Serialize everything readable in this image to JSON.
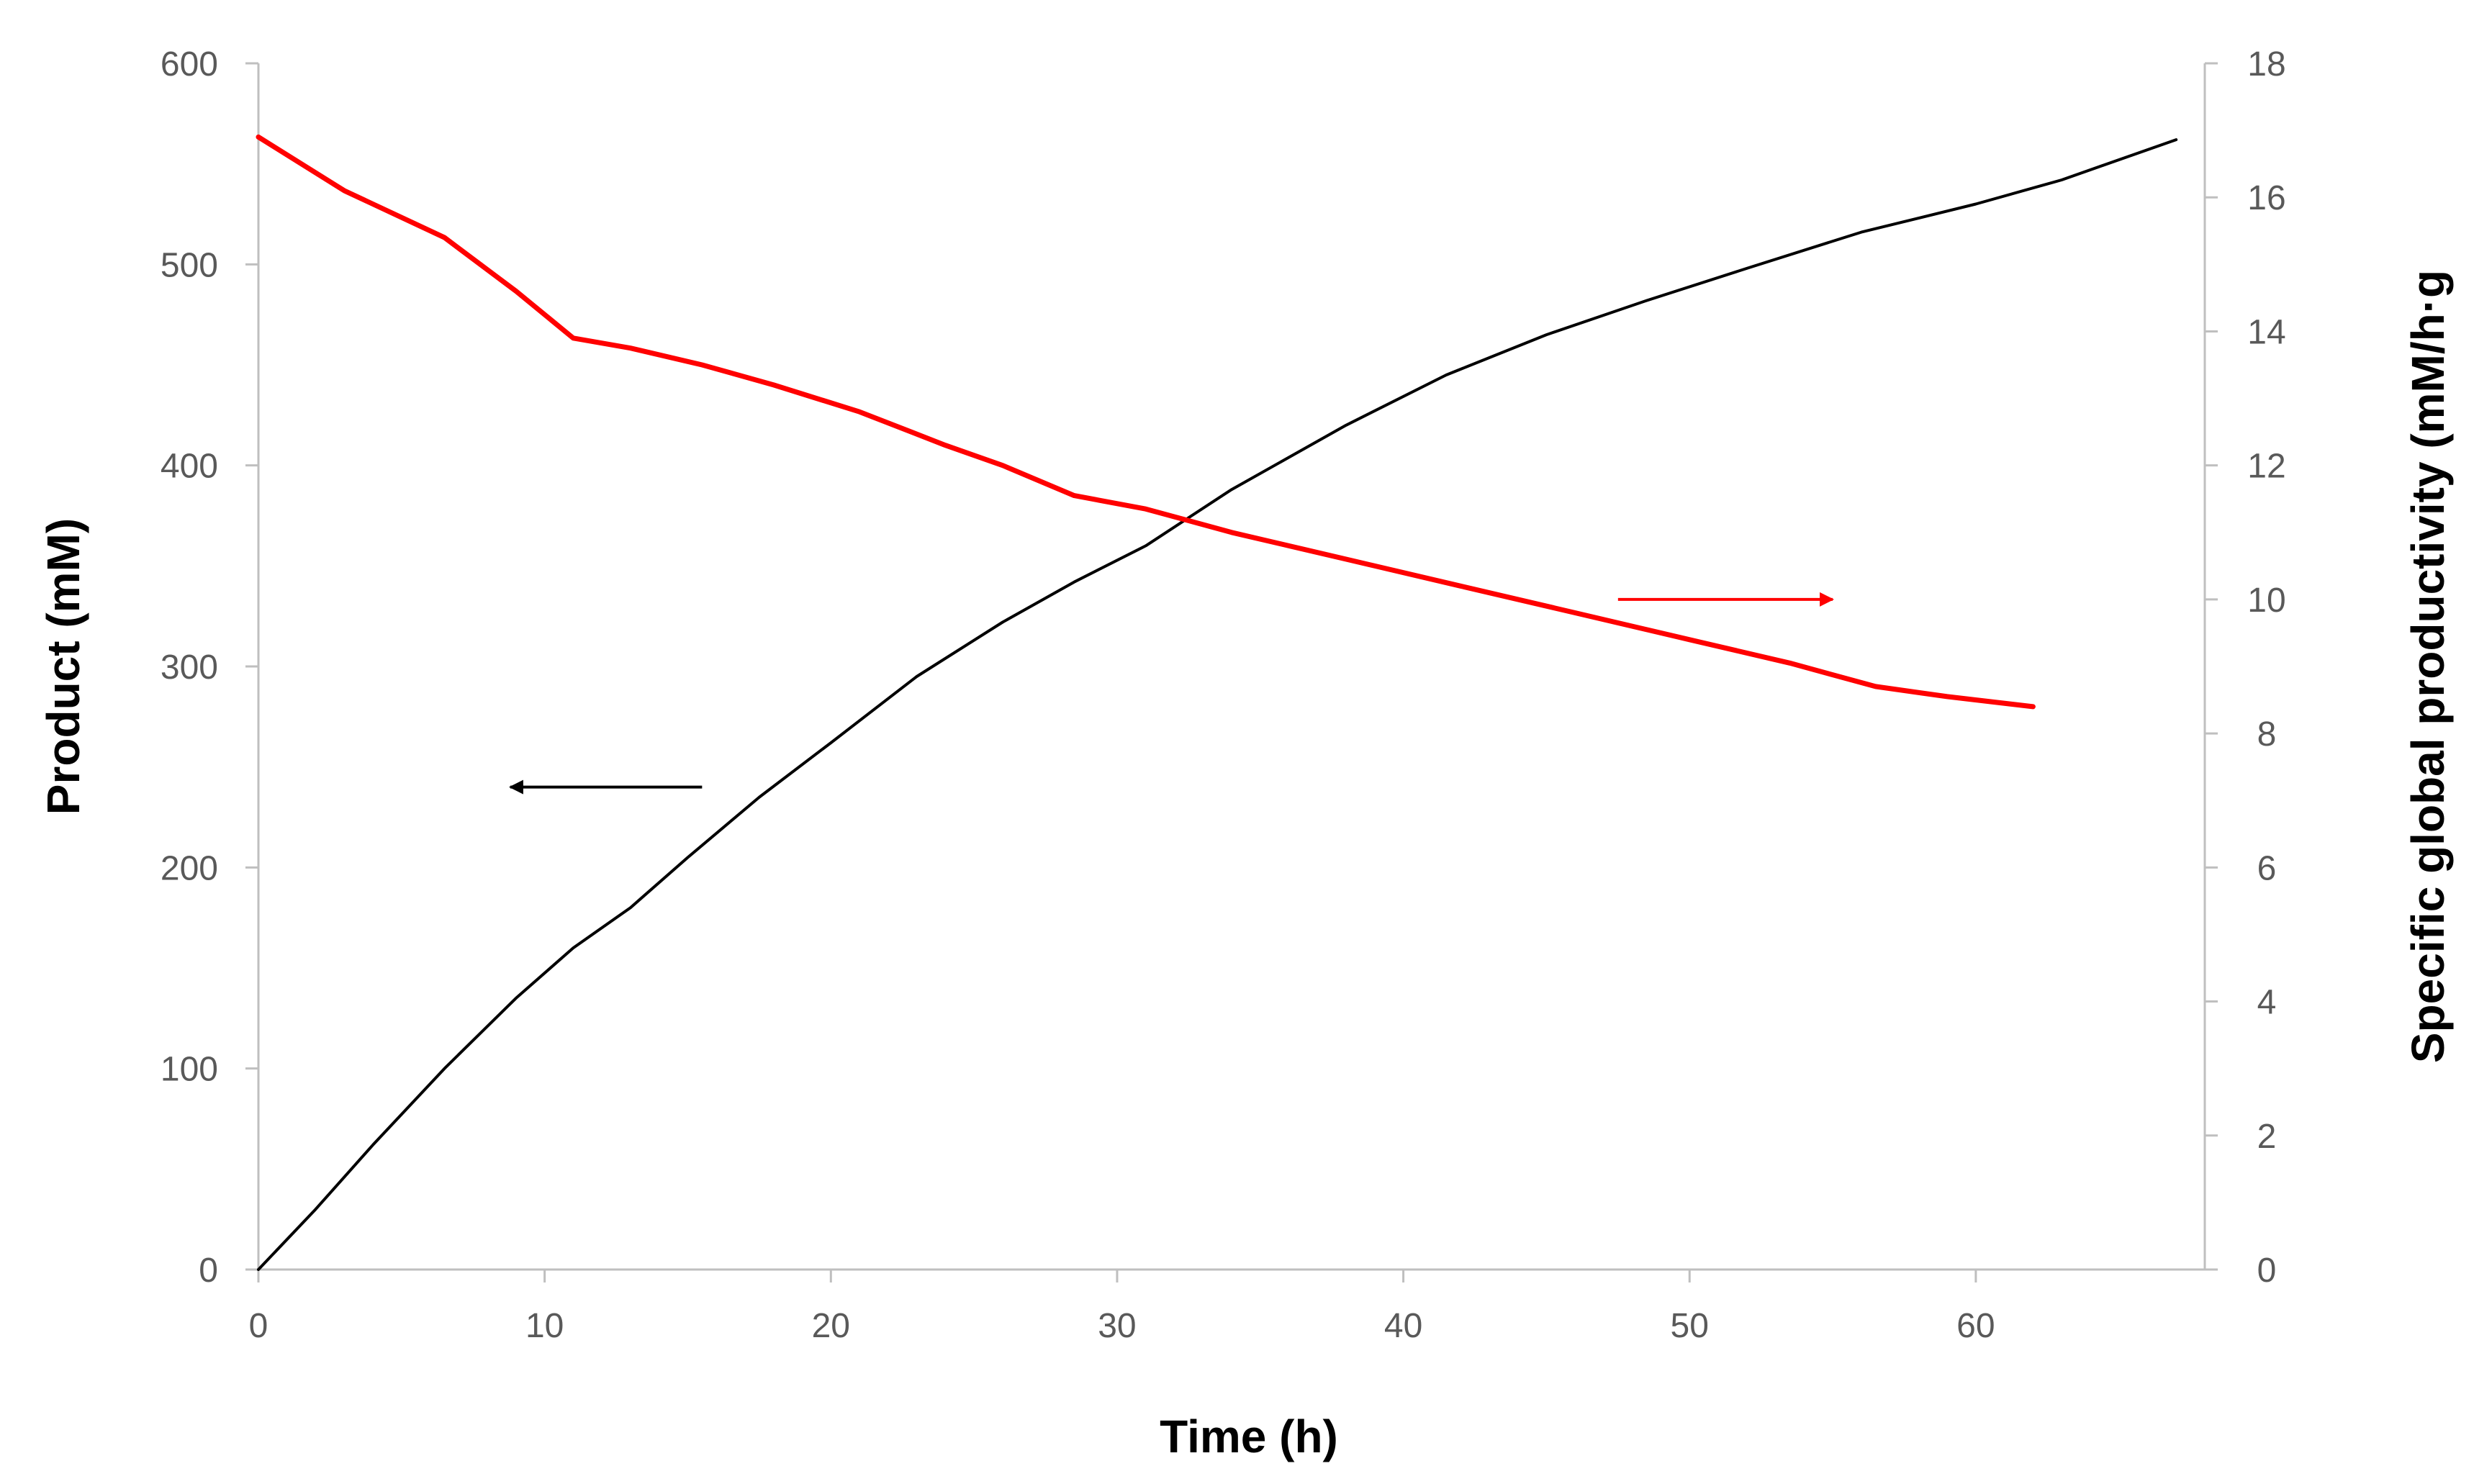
{
  "chart_data": {
    "type": "line",
    "title": "",
    "xlabel": "Time (h)",
    "ylabel": "Product (mM)",
    "y2label": "Specific global productivity (mM/h·g",
    "xlim": [
      0,
      68
    ],
    "ylim": [
      0,
      600
    ],
    "y2lim": [
      0,
      18
    ],
    "x_ticks": [
      0,
      10,
      20,
      30,
      40,
      50,
      60
    ],
    "y_ticks": [
      0,
      100,
      200,
      300,
      400,
      500,
      600
    ],
    "y2_ticks": [
      0,
      2,
      4,
      6,
      8,
      10,
      12,
      14,
      16,
      18
    ],
    "grid": false,
    "legend": "none",
    "series": [
      {
        "axis": "left",
        "color": "#000000",
        "points": [
          [
            0,
            0
          ],
          [
            2,
            30
          ],
          [
            4,
            62
          ],
          [
            6.5,
            100
          ],
          [
            9,
            135
          ],
          [
            11,
            160
          ],
          [
            13,
            180
          ],
          [
            15,
            205
          ],
          [
            17.5,
            235
          ],
          [
            20,
            262
          ],
          [
            23,
            295
          ],
          [
            26,
            322
          ],
          [
            28.5,
            342
          ],
          [
            31,
            360
          ],
          [
            34,
            388
          ],
          [
            38,
            420
          ],
          [
            41.5,
            445
          ],
          [
            45,
            465
          ],
          [
            48.5,
            482
          ],
          [
            52,
            498
          ],
          [
            56,
            516
          ],
          [
            60,
            530
          ],
          [
            63,
            542
          ],
          [
            67,
            562
          ]
        ]
      },
      {
        "axis": "right",
        "color": "#ff0000",
        "points": [
          [
            0,
            16.9
          ],
          [
            3,
            16.1
          ],
          [
            6.5,
            15.4
          ],
          [
            9,
            14.6
          ],
          [
            11,
            13.9
          ],
          [
            13,
            13.75
          ],
          [
            15.5,
            13.5
          ],
          [
            18,
            13.2
          ],
          [
            21,
            12.8
          ],
          [
            24,
            12.3
          ],
          [
            26,
            12.0
          ],
          [
            28.5,
            11.55
          ],
          [
            31,
            11.35
          ],
          [
            34,
            11.0
          ],
          [
            38,
            10.6
          ],
          [
            42,
            10.2
          ],
          [
            46,
            9.8
          ],
          [
            50,
            9.4
          ],
          [
            53.5,
            9.05
          ],
          [
            56.5,
            8.7
          ],
          [
            59,
            8.55
          ],
          [
            62,
            8.4
          ]
        ]
      }
    ],
    "annotations": [
      {
        "type": "arrow",
        "color": "#000000",
        "from": [
          15.5,
          240
        ],
        "to": [
          8.8,
          240
        ],
        "meaning": "points to left axis"
      },
      {
        "type": "arrow",
        "color": "#ff0000",
        "from": [
          47.5,
          10.0
        ],
        "to": [
          55,
          10.0
        ],
        "meaning": "points to right axis"
      }
    ]
  }
}
